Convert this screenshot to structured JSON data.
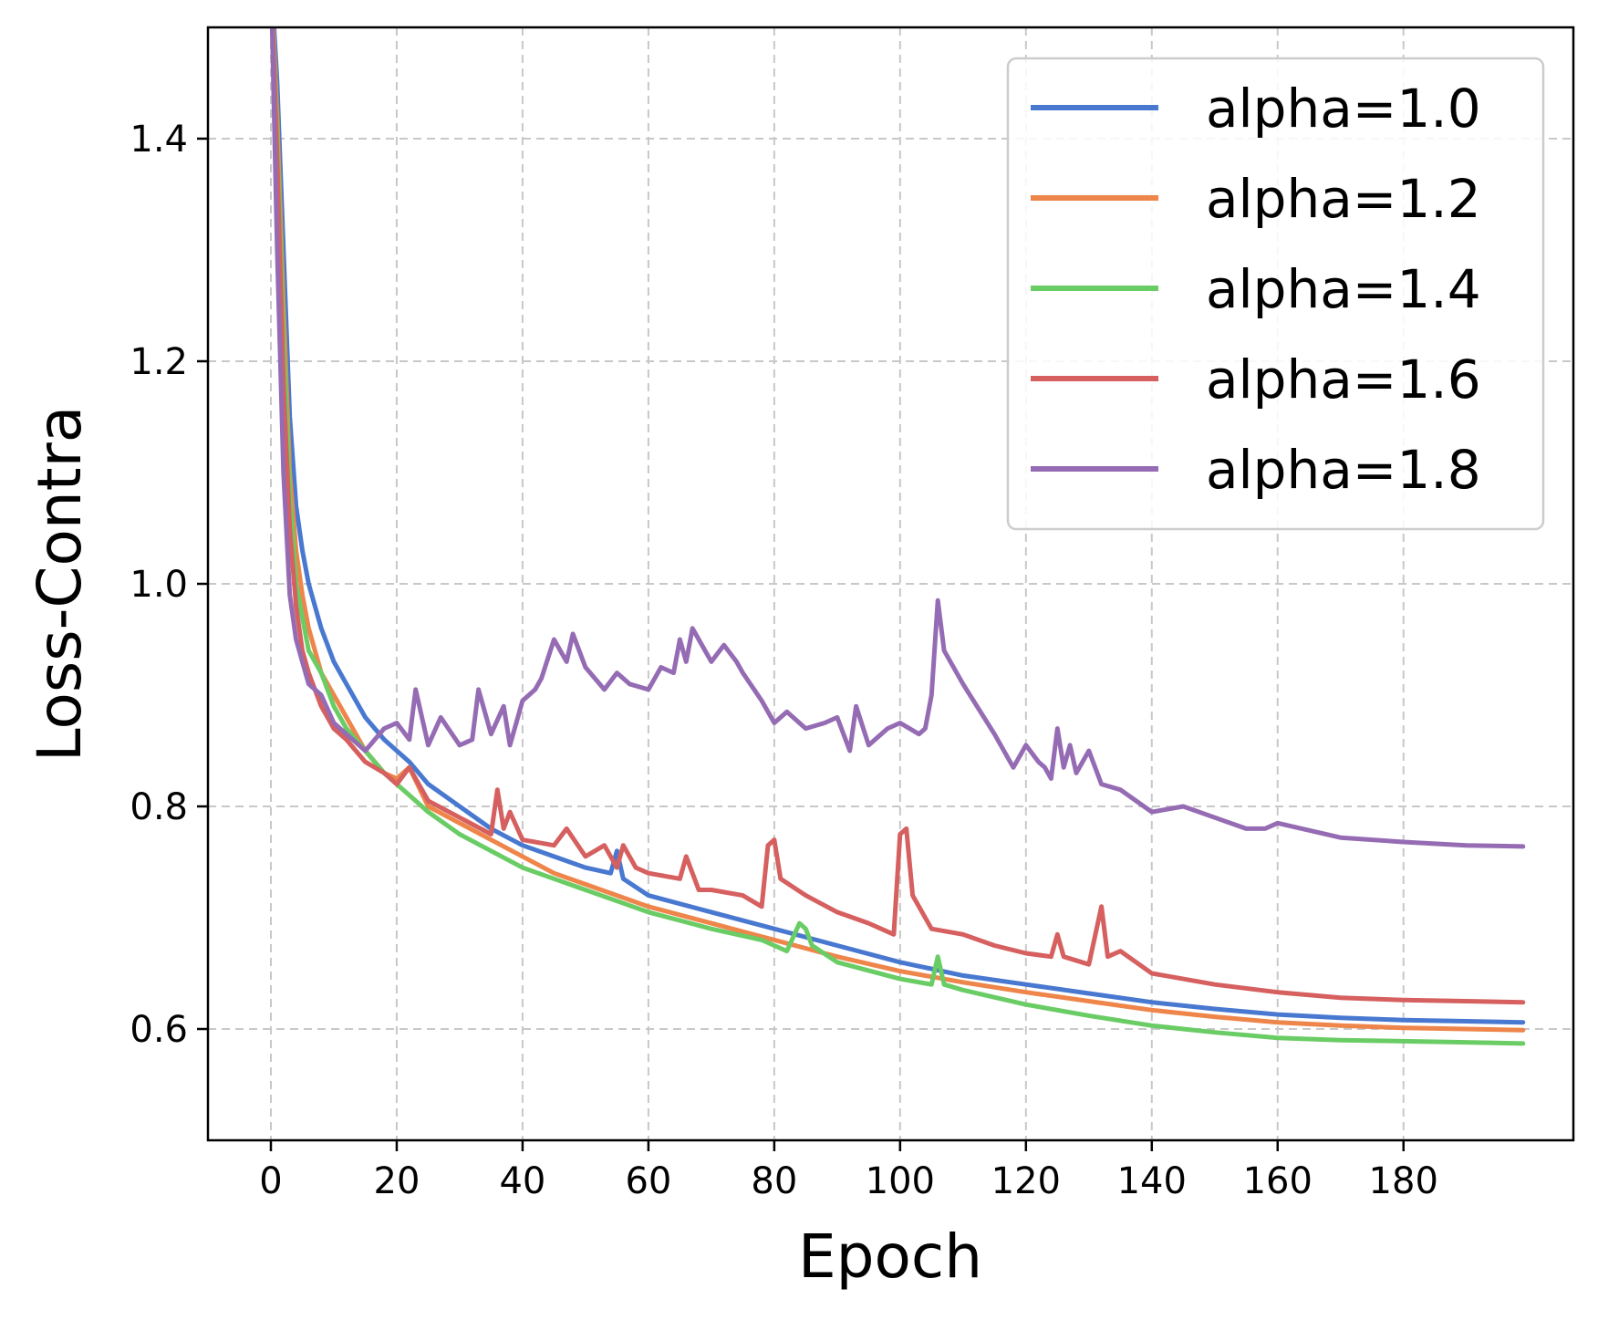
{
  "chart_data": {
    "type": "line",
    "title": "",
    "xlabel": "Epoch",
    "ylabel": "Loss-Contra",
    "xlim": [
      -10,
      207
    ],
    "ylim": [
      0.5,
      1.5
    ],
    "xticks": [
      0,
      20,
      40,
      60,
      80,
      100,
      120,
      140,
      160,
      180
    ],
    "xtick_labels": [
      "0",
      "20",
      "40",
      "60",
      "80",
      "100",
      "120",
      "140",
      "160",
      "180"
    ],
    "yticks": [
      0.6,
      0.8,
      1.0,
      1.2,
      1.4
    ],
    "ytick_labels": [
      "0.6",
      "0.8",
      "1.0",
      "1.2",
      "1.4"
    ],
    "grid": true,
    "legend_position": "top-right",
    "series": [
      {
        "name": "alpha=1.0",
        "color": "#4878d0",
        "x": [
          0,
          1,
          2,
          3,
          4,
          5,
          6,
          8,
          10,
          12,
          15,
          18,
          20,
          22,
          25,
          30,
          35,
          40,
          45,
          50,
          54,
          55,
          56,
          60,
          70,
          80,
          90,
          100,
          110,
          120,
          130,
          140,
          150,
          160,
          170,
          180,
          190,
          199
        ],
        "y": [
          1.55,
          1.45,
          1.3,
          1.15,
          1.07,
          1.03,
          1.0,
          0.96,
          0.93,
          0.91,
          0.88,
          0.86,
          0.85,
          0.84,
          0.82,
          0.8,
          0.78,
          0.765,
          0.755,
          0.745,
          0.74,
          0.76,
          0.735,
          0.72,
          0.705,
          0.69,
          0.675,
          0.66,
          0.648,
          0.64,
          0.632,
          0.624,
          0.618,
          0.613,
          0.61,
          0.608,
          0.607,
          0.606
        ]
      },
      {
        "name": "alpha=1.2",
        "color": "#ee854a",
        "x": [
          0,
          1,
          2,
          3,
          4,
          5,
          6,
          8,
          10,
          12,
          15,
          18,
          20,
          22,
          25,
          30,
          35,
          40,
          45,
          50,
          55,
          60,
          70,
          80,
          90,
          100,
          110,
          120,
          130,
          140,
          150,
          160,
          170,
          180,
          190,
          199
        ],
        "y": [
          1.55,
          1.42,
          1.25,
          1.1,
          1.03,
          0.99,
          0.96,
          0.92,
          0.9,
          0.88,
          0.85,
          0.83,
          0.825,
          0.835,
          0.8,
          0.785,
          0.77,
          0.755,
          0.74,
          0.73,
          0.72,
          0.71,
          0.695,
          0.68,
          0.665,
          0.652,
          0.642,
          0.633,
          0.625,
          0.617,
          0.611,
          0.606,
          0.603,
          0.601,
          0.6,
          0.599
        ]
      },
      {
        "name": "alpha=1.4",
        "color": "#6acc64",
        "x": [
          0,
          1,
          2,
          3,
          4,
          5,
          6,
          8,
          10,
          12,
          15,
          18,
          20,
          22,
          25,
          30,
          35,
          40,
          45,
          50,
          55,
          60,
          70,
          78,
          80,
          82,
          84,
          85,
          86,
          90,
          100,
          105,
          106,
          107,
          110,
          120,
          130,
          140,
          150,
          160,
          170,
          180,
          190,
          199
        ],
        "y": [
          1.55,
          1.4,
          1.22,
          1.08,
          1.0,
          0.97,
          0.94,
          0.92,
          0.89,
          0.87,
          0.85,
          0.83,
          0.82,
          0.81,
          0.795,
          0.775,
          0.76,
          0.745,
          0.735,
          0.725,
          0.715,
          0.705,
          0.69,
          0.68,
          0.675,
          0.67,
          0.695,
          0.69,
          0.675,
          0.66,
          0.645,
          0.64,
          0.665,
          0.64,
          0.635,
          0.622,
          0.612,
          0.603,
          0.597,
          0.592,
          0.59,
          0.589,
          0.588,
          0.587
        ]
      },
      {
        "name": "alpha=1.6",
        "color": "#d65f5f",
        "x": [
          0,
          1,
          2,
          3,
          4,
          5,
          6,
          8,
          10,
          12,
          15,
          18,
          20,
          22,
          25,
          30,
          35,
          36,
          37,
          38,
          40,
          45,
          47,
          50,
          53,
          55,
          56,
          58,
          60,
          65,
          66,
          68,
          70,
          75,
          78,
          79,
          80,
          81,
          85,
          90,
          95,
          99,
          100,
          101,
          102,
          105,
          110,
          115,
          120,
          124,
          125,
          126,
          130,
          132,
          133,
          135,
          140,
          150,
          160,
          170,
          180,
          190,
          199
        ],
        "y": [
          1.55,
          1.38,
          1.18,
          1.05,
          0.98,
          0.94,
          0.92,
          0.89,
          0.87,
          0.86,
          0.84,
          0.83,
          0.82,
          0.835,
          0.805,
          0.79,
          0.775,
          0.815,
          0.78,
          0.795,
          0.77,
          0.765,
          0.78,
          0.755,
          0.765,
          0.745,
          0.765,
          0.745,
          0.74,
          0.735,
          0.755,
          0.725,
          0.725,
          0.72,
          0.71,
          0.765,
          0.77,
          0.735,
          0.72,
          0.705,
          0.695,
          0.685,
          0.775,
          0.78,
          0.72,
          0.69,
          0.685,
          0.675,
          0.668,
          0.665,
          0.685,
          0.665,
          0.658,
          0.71,
          0.665,
          0.67,
          0.65,
          0.64,
          0.633,
          0.628,
          0.626,
          0.625,
          0.624
        ]
      },
      {
        "name": "alpha=1.8",
        "color": "#956cb4",
        "x": [
          0,
          1,
          2,
          3,
          4,
          5,
          6,
          8,
          10,
          12,
          15,
          18,
          20,
          22,
          23,
          25,
          27,
          30,
          32,
          33,
          35,
          37,
          38,
          40,
          42,
          43,
          45,
          47,
          48,
          50,
          53,
          55,
          57,
          60,
          62,
          64,
          65,
          66,
          67,
          70,
          72,
          74,
          75,
          78,
          80,
          82,
          85,
          88,
          90,
          92,
          93,
          95,
          98,
          100,
          103,
          104,
          105,
          106,
          107,
          110,
          115,
          118,
          120,
          122,
          123,
          124,
          125,
          126,
          127,
          128,
          130,
          132,
          135,
          140,
          145,
          150,
          155,
          158,
          160,
          170,
          180,
          190,
          199
        ],
        "y": [
          1.55,
          1.3,
          1.1,
          0.99,
          0.95,
          0.93,
          0.91,
          0.9,
          0.875,
          0.865,
          0.85,
          0.87,
          0.875,
          0.86,
          0.905,
          0.855,
          0.88,
          0.855,
          0.86,
          0.905,
          0.865,
          0.89,
          0.855,
          0.895,
          0.905,
          0.915,
          0.95,
          0.93,
          0.955,
          0.925,
          0.905,
          0.92,
          0.91,
          0.905,
          0.925,
          0.92,
          0.95,
          0.93,
          0.96,
          0.93,
          0.945,
          0.93,
          0.92,
          0.895,
          0.875,
          0.885,
          0.87,
          0.875,
          0.88,
          0.85,
          0.89,
          0.855,
          0.87,
          0.875,
          0.865,
          0.87,
          0.9,
          0.985,
          0.94,
          0.91,
          0.865,
          0.835,
          0.855,
          0.84,
          0.835,
          0.825,
          0.87,
          0.835,
          0.855,
          0.83,
          0.85,
          0.82,
          0.815,
          0.795,
          0.8,
          0.79,
          0.78,
          0.78,
          0.785,
          0.772,
          0.768,
          0.765,
          0.764
        ]
      }
    ]
  }
}
